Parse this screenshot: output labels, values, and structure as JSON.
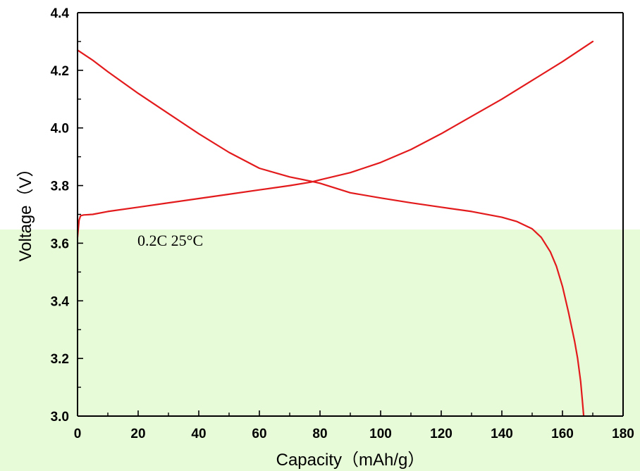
{
  "colors": {
    "series": "#e31a1c",
    "overlay": "#e8fbd9",
    "axis": "#000000"
  },
  "chart_data": {
    "type": "line",
    "title": "",
    "xlabel": "Capacity（mAh/g）",
    "ylabel": "Voltage（V）",
    "xlim": [
      0,
      180
    ],
    "ylim": [
      3.0,
      4.4
    ],
    "xticks": [
      0,
      20,
      40,
      60,
      80,
      100,
      120,
      140,
      160,
      180
    ],
    "yticks": [
      3.0,
      3.2,
      3.4,
      3.6,
      3.8,
      4.0,
      4.2,
      4.4
    ],
    "xtick_labels": [
      "0",
      "20",
      "40",
      "60",
      "80",
      "100",
      "120",
      "140",
      "160",
      "180"
    ],
    "ytick_labels": [
      "3.0",
      "3.2",
      "3.4",
      "3.6",
      "3.8",
      "4.0",
      "4.2",
      "4.4"
    ],
    "grid": false,
    "annotation": "0.2C  25°C",
    "series": [
      {
        "x": [
          0,
          0.5,
          1,
          2,
          5,
          10,
          20,
          30,
          40,
          50,
          60,
          70,
          77,
          80,
          90,
          100,
          110,
          120,
          130,
          140,
          150,
          160,
          170
        ],
        "y": [
          3.62,
          3.68,
          3.695,
          3.698,
          3.7,
          3.71,
          3.725,
          3.74,
          3.755,
          3.77,
          3.785,
          3.8,
          3.812,
          3.82,
          3.845,
          3.88,
          3.925,
          3.98,
          4.04,
          4.1,
          4.165,
          4.23,
          4.3
        ]
      },
      {
        "x": [
          0,
          5,
          10,
          20,
          30,
          40,
          50,
          60,
          70,
          77,
          80,
          90,
          100,
          110,
          120,
          130,
          140,
          145,
          150,
          153,
          156,
          158,
          160,
          162,
          164,
          165,
          166,
          166.5,
          167
        ],
        "y": [
          4.27,
          4.235,
          4.195,
          4.12,
          4.05,
          3.98,
          3.915,
          3.86,
          3.83,
          3.815,
          3.808,
          3.775,
          3.757,
          3.74,
          3.725,
          3.71,
          3.69,
          3.675,
          3.65,
          3.62,
          3.57,
          3.52,
          3.45,
          3.36,
          3.26,
          3.2,
          3.12,
          3.06,
          3.0
        ]
      }
    ]
  }
}
